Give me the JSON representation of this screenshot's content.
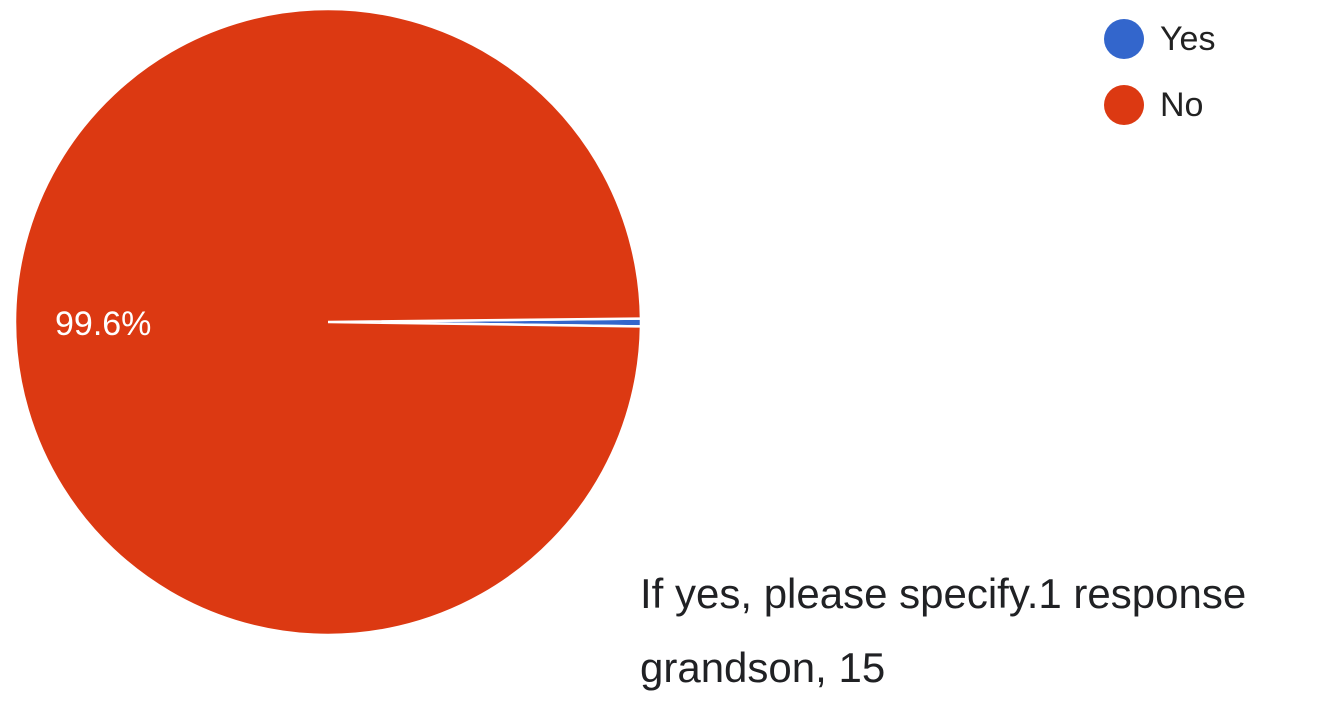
{
  "chart_data": {
    "type": "pie",
    "slices": [
      {
        "label": "Yes",
        "value": 0.4,
        "color": "#3366cc",
        "data_label": ""
      },
      {
        "label": "No",
        "value": 99.6,
        "color": "#dc3912",
        "data_label": "99.6%"
      }
    ],
    "legend_position": "top-right"
  },
  "legend": {
    "items": [
      {
        "label": "Yes",
        "color": "#3366cc"
      },
      {
        "label": "No",
        "color": "#dc3912"
      }
    ]
  },
  "followup": {
    "question": "If yes, please specify.",
    "response_count": "1 response",
    "answer": "grandson, 15"
  }
}
